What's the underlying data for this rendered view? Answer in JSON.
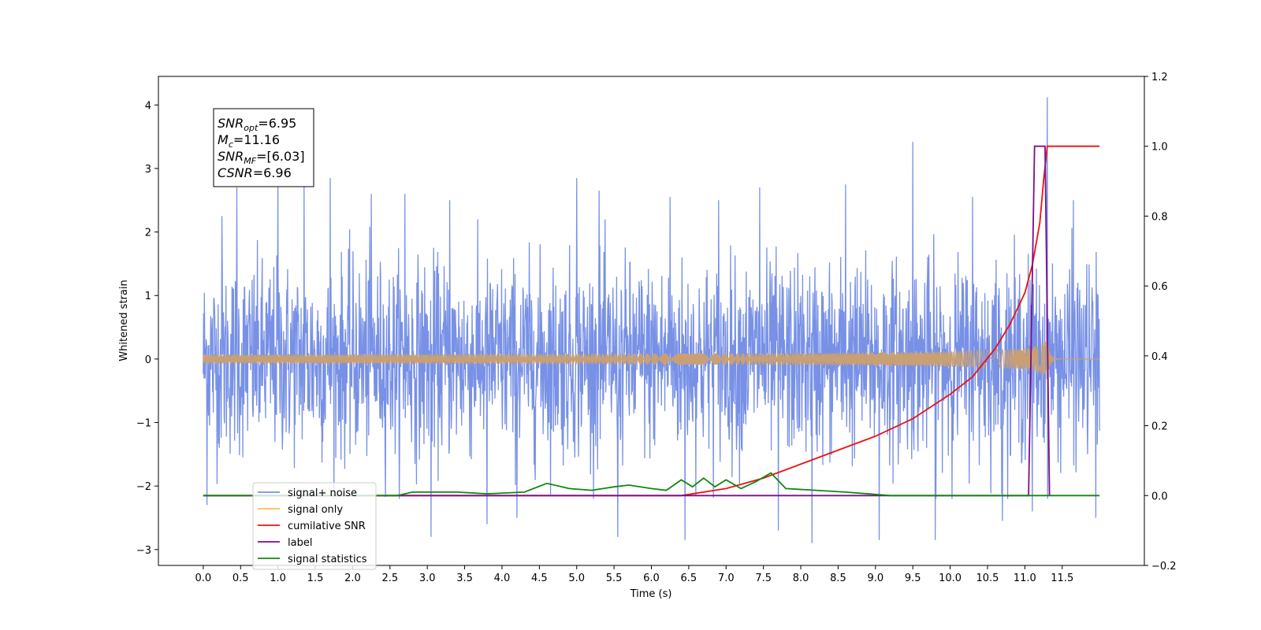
{
  "chart_data": {
    "type": "line",
    "xlabel": "Time (s)",
    "ylabel_left": "Whitened strain",
    "ylabel_right": "",
    "xlim": [
      -0.6,
      12.6
    ],
    "ylim_left": [
      -3.25,
      4.45
    ],
    "ylim_right": [
      -0.2,
      1.2
    ],
    "xticks": [
      "0.0",
      "0.5",
      "1.0",
      "1.5",
      "2.0",
      "2.5",
      "3.0",
      "3.5",
      "4.0",
      "4.5",
      "5.0",
      "5.5",
      "6.0",
      "6.5",
      "7.0",
      "7.5",
      "8.0",
      "8.5",
      "9.0",
      "9.5",
      "10.0",
      "10.5",
      "11.0",
      "11.5"
    ],
    "yticks_left": [
      "−3",
      "−2",
      "−1",
      "0",
      "1",
      "2",
      "3",
      "4"
    ],
    "yticks_right": [
      "−0.2",
      "0.0",
      "0.2",
      "0.4",
      "0.6",
      "0.8",
      "1.0",
      "1.2"
    ],
    "grid": false,
    "legend_position": "lower-left",
    "annotation": {
      "lines": [
        {
          "name": "SNR",
          "sub": "opt",
          "value": "=6.95"
        },
        {
          "name": "M",
          "sub": "c",
          "value": "=11.16"
        },
        {
          "name": "SNR",
          "sub": "MF",
          "value": "=[6.03]"
        },
        {
          "name": "CSNR",
          "sub": "",
          "value": "=6.96"
        }
      ]
    },
    "series": [
      {
        "name": "signal+ noise",
        "color": "#7891e6",
        "axis": "left",
        "x_range": [
          0.0,
          12.0
        ],
        "envelope_typical": [
          -1.5,
          1.6
        ],
        "spikes": [
          {
            "x": 0.25,
            "y": 2.25
          },
          {
            "x": 0.45,
            "y": 2.7
          },
          {
            "x": 0.05,
            "y": -2.3
          },
          {
            "x": 1.0,
            "y": 2.8
          },
          {
            "x": 1.35,
            "y": 2.75
          },
          {
            "x": 1.7,
            "y": 2.85
          },
          {
            "x": 2.25,
            "y": 2.6
          },
          {
            "x": 2.7,
            "y": 2.6
          },
          {
            "x": 3.05,
            "y": -2.8
          },
          {
            "x": 3.3,
            "y": 2.5
          },
          {
            "x": 3.8,
            "y": -2.6
          },
          {
            "x": 4.2,
            "y": -2.5
          },
          {
            "x": 5.0,
            "y": 2.85
          },
          {
            "x": 5.3,
            "y": 2.65
          },
          {
            "x": 5.55,
            "y": -2.8
          },
          {
            "x": 6.25,
            "y": 2.55
          },
          {
            "x": 6.45,
            "y": -2.85
          },
          {
            "x": 6.9,
            "y": 2.5
          },
          {
            "x": 7.45,
            "y": 2.7
          },
          {
            "x": 7.7,
            "y": -2.7
          },
          {
            "x": 8.15,
            "y": -2.9
          },
          {
            "x": 8.6,
            "y": 2.75
          },
          {
            "x": 9.05,
            "y": -2.85
          },
          {
            "x": 9.5,
            "y": 3.42
          },
          {
            "x": 9.8,
            "y": -2.85
          },
          {
            "x": 10.3,
            "y": 2.55
          },
          {
            "x": 10.7,
            "y": -2.55
          },
          {
            "x": 11.1,
            "y": -2.4
          },
          {
            "x": 11.3,
            "y": 4.12
          },
          {
            "x": 11.65,
            "y": 2.5
          },
          {
            "x": 11.95,
            "y": -2.5
          }
        ]
      },
      {
        "name": "signal only",
        "color": "#ffbb55",
        "axis": "left",
        "chirp_peak_time": 11.3,
        "peak_amplitude": 0.35
      },
      {
        "name": "cumilative SNR",
        "color": "#ee1111",
        "axis": "right",
        "x": [
          0.0,
          6.4,
          7.0,
          7.5,
          8.0,
          8.5,
          9.0,
          9.5,
          10.0,
          10.3,
          10.6,
          10.8,
          11.0,
          11.1,
          11.2,
          11.25,
          11.3,
          12.0
        ],
        "y": [
          0.0,
          0.0,
          0.02,
          0.05,
          0.09,
          0.13,
          0.17,
          0.22,
          0.29,
          0.34,
          0.42,
          0.49,
          0.58,
          0.66,
          0.78,
          0.9,
          1.0,
          1.0
        ]
      },
      {
        "name": "label",
        "color": "#7b0f8a",
        "axis": "right",
        "x": [
          0.0,
          11.05,
          11.13,
          11.27,
          11.33,
          11.33
        ],
        "y": [
          0.0,
          0.0,
          1.0,
          1.0,
          0.0,
          0.0
        ]
      },
      {
        "name": "signal statistics",
        "color": "#118811",
        "axis": "right",
        "x": [
          0.0,
          2.6,
          2.8,
          3.4,
          3.8,
          4.3,
          4.6,
          4.9,
          5.2,
          5.5,
          5.7,
          6.0,
          6.2,
          6.4,
          6.55,
          6.7,
          6.85,
          7.0,
          7.2,
          7.4,
          7.6,
          7.8,
          8.2,
          8.6,
          8.9,
          9.2,
          12.0
        ],
        "y": [
          0.0,
          0.0,
          0.01,
          0.01,
          0.005,
          0.01,
          0.035,
          0.02,
          0.015,
          0.025,
          0.03,
          0.02,
          0.015,
          0.045,
          0.025,
          0.05,
          0.025,
          0.045,
          0.02,
          0.04,
          0.065,
          0.02,
          0.015,
          0.01,
          0.005,
          0.0,
          0.0
        ]
      }
    ],
    "legend": [
      "signal+ noise",
      "signal only",
      "cumilative SNR",
      "label",
      "signal statistics"
    ]
  }
}
